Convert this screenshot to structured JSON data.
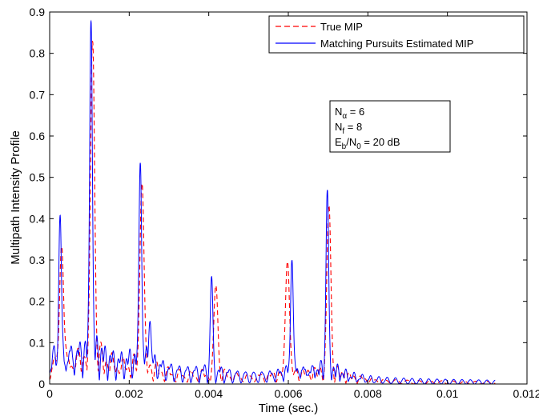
{
  "chart_data": {
    "type": "line",
    "title": "",
    "xlabel": "Time (sec.)",
    "ylabel": "Multipath Intensity Profile",
    "xlim": [
      0,
      0.012
    ],
    "ylim": [
      0,
      0.9
    ],
    "xticks": [
      0,
      0.002,
      0.004,
      0.006,
      0.008,
      0.01,
      0.012
    ],
    "xtick_labels": [
      "0",
      "0.002",
      "0.004",
      "0.006",
      "0.008",
      "0.01",
      "0.012"
    ],
    "yticks": [
      0,
      0.1,
      0.2,
      0.3,
      0.4,
      0.5,
      0.6,
      0.7,
      0.8,
      0.9
    ],
    "ytick_labels": [
      "0",
      "0.1",
      "0.2",
      "0.3",
      "0.4",
      "0.5",
      "0.6",
      "0.7",
      "0.8",
      "0.9"
    ],
    "grid": false,
    "legend_position": "top-right",
    "series": [
      {
        "name": "True MIP",
        "color": "#ff0000",
        "style": "dashed",
        "peaks": [
          {
            "x": 0.0003,
            "y": 0.31
          },
          {
            "x": 0.00108,
            "y": 0.81
          },
          {
            "x": 0.00232,
            "y": 0.48
          },
          {
            "x": 0.00418,
            "y": 0.22
          },
          {
            "x": 0.00598,
            "y": 0.29
          },
          {
            "x": 0.00702,
            "y": 0.42
          }
        ]
      },
      {
        "name": "Matching Pursuits Estimated MIP",
        "color": "#0000ff",
        "style": "solid",
        "peaks": [
          {
            "x": 0.00026,
            "y": 0.36
          },
          {
            "x": 0.00104,
            "y": 0.875
          },
          {
            "x": 0.00228,
            "y": 0.52
          },
          {
            "x": 0.00252,
            "y": 0.15
          },
          {
            "x": 0.00407,
            "y": 0.23
          },
          {
            "x": 0.00609,
            "y": 0.29
          },
          {
            "x": 0.00698,
            "y": 0.455
          }
        ]
      }
    ],
    "annotation": {
      "lines": [
        {
          "main": "N",
          "sub": "α",
          "rest": " = 6"
        },
        {
          "main": "N",
          "sub": "f",
          "rest": " = 8"
        },
        {
          "main": "E",
          "sub": "b",
          "mid": "/N",
          "sub2": "0",
          "rest": " = 20 dB"
        }
      ]
    }
  }
}
